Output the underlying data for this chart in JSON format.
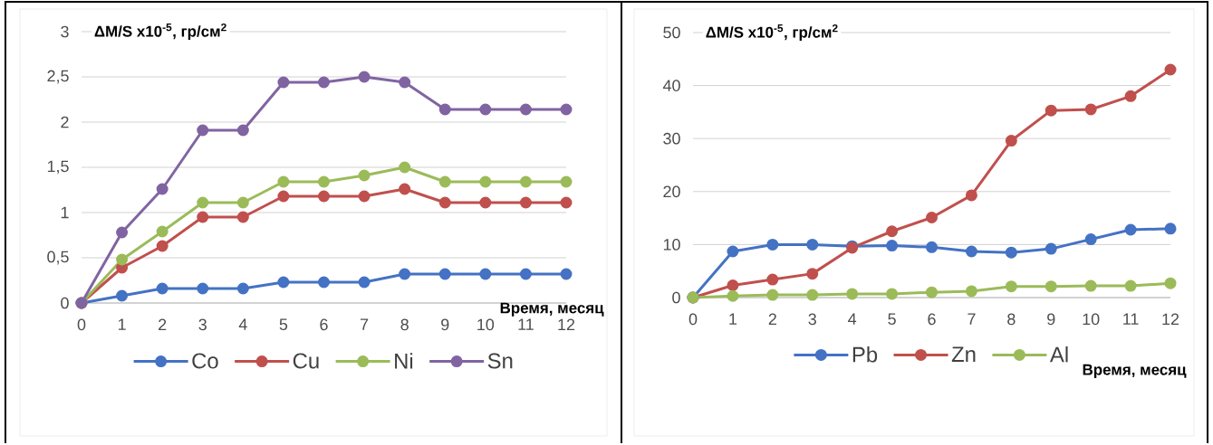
{
  "chart_data": [
    {
      "type": "line",
      "ylabel": "ΔM/S  x10$^{-5}$, гр/см$^{2}$",
      "xlabel": "Время, месяц",
      "x": [
        0,
        1,
        2,
        3,
        4,
        5,
        6,
        7,
        8,
        9,
        10,
        11,
        12
      ],
      "xlim": [
        0,
        12
      ],
      "xticks": [
        0,
        1,
        2,
        3,
        4,
        5,
        6,
        7,
        8,
        9,
        10,
        11,
        12
      ],
      "ylim": [
        0,
        3
      ],
      "yticks": [
        0,
        {
          "value": 0.5,
          "label": "0,5"
        },
        1,
        {
          "value": 1.5,
          "label": "1,5"
        },
        2,
        {
          "value": 2.5,
          "label": "2,5"
        },
        3
      ],
      "grid": "y",
      "legend": "bottom",
      "marker": "circle",
      "line_style": "solid",
      "series": [
        {
          "name": "Co",
          "color": "#4472c4",
          "values": [
            0,
            0.08,
            0.16,
            0.16,
            0.16,
            0.23,
            0.23,
            0.23,
            0.32,
            0.32,
            0.32,
            0.32,
            0.32
          ]
        },
        {
          "name": "Cu",
          "color": "#c0504d",
          "values": [
            0,
            0.39,
            0.63,
            0.95,
            0.95,
            1.18,
            1.18,
            1.18,
            1.26,
            1.11,
            1.11,
            1.11,
            1.11
          ]
        },
        {
          "name": "Ni",
          "color": "#9bbb59",
          "values": [
            0,
            0.48,
            0.79,
            1.11,
            1.11,
            1.34,
            1.34,
            1.41,
            1.5,
            1.34,
            1.34,
            1.34,
            1.34
          ]
        },
        {
          "name": "Sn",
          "color": "#8064a2",
          "values": [
            0,
            0.78,
            1.26,
            1.91,
            1.91,
            2.44,
            2.44,
            2.5,
            2.44,
            2.14,
            2.14,
            2.14,
            2.14
          ]
        }
      ]
    },
    {
      "type": "line",
      "ylabel": "ΔM/S  x10$^{-5}$, гр/см$^{2}$",
      "xlabel": "Время, месяц",
      "x": [
        0,
        1,
        2,
        3,
        4,
        5,
        6,
        7,
        8,
        9,
        10,
        11,
        12
      ],
      "xlim": [
        0,
        12
      ],
      "xticks": [
        0,
        1,
        2,
        3,
        4,
        5,
        6,
        7,
        8,
        9,
        10,
        11,
        12
      ],
      "ylim": [
        0,
        50
      ],
      "yticks": [
        0,
        10,
        20,
        30,
        40,
        50
      ],
      "grid": "y",
      "legend": "bottom",
      "marker": "circle",
      "line_style": "solid",
      "series": [
        {
          "name": "Pb",
          "color": "#4472c4",
          "values": [
            0,
            8.7,
            10,
            10,
            9.7,
            9.8,
            9.5,
            8.7,
            8.5,
            9.2,
            11,
            12.8,
            13
          ]
        },
        {
          "name": "Zn",
          "color": "#c0504d",
          "values": [
            0,
            2.3,
            3.4,
            4.5,
            9.4,
            12.5,
            15.1,
            19.3,
            29.6,
            35.3,
            35.5,
            38,
            43
          ]
        },
        {
          "name": "Al",
          "color": "#9bbb59",
          "values": [
            0,
            0.3,
            0.5,
            0.5,
            0.7,
            0.7,
            1,
            1.2,
            2.1,
            2.1,
            2.2,
            2.2,
            2.7
          ]
        }
      ]
    }
  ]
}
